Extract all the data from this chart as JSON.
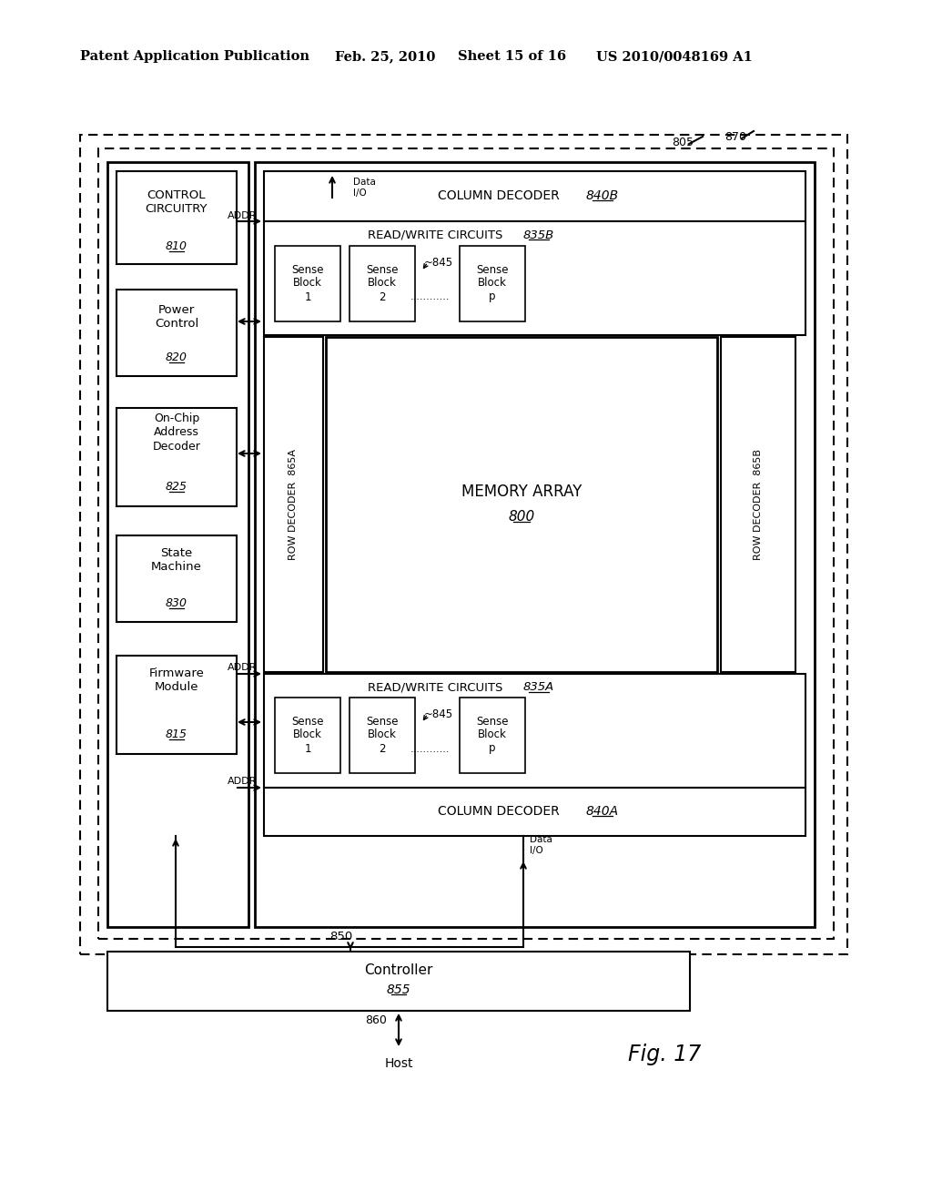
{
  "bg_color": "#ffffff",
  "header_left": "Patent Application Publication",
  "header_date": "Feb. 25, 2010",
  "header_sheet": "Sheet 15 of 16",
  "header_patent": "US 2010/0048169 A1",
  "fig_label": "Fig. 17",
  "outer_label": "870",
  "inner_label": "805",
  "memory_array_text": "MEMORY ARRAY",
  "memory_array_ref": "800",
  "control_ref": "810",
  "power_ref": "820",
  "onchip_ref": "825",
  "statemachine_ref": "830",
  "firmware_ref": "815",
  "col_dec_top_ref": "840B",
  "col_dec_bot_ref": "840A",
  "rw_top_ref": "835B",
  "rw_bot_ref": "835A",
  "row_dec_left_ref": "865A",
  "row_dec_right_ref": "865B",
  "sense_ref": "845",
  "controller_text": "Controller",
  "controller_ref": "855",
  "bus_ref": "850",
  "host_text": "Host",
  "host_ref": "860",
  "addr_text": "ADDR",
  "data_io_text": "Data\nI/O"
}
